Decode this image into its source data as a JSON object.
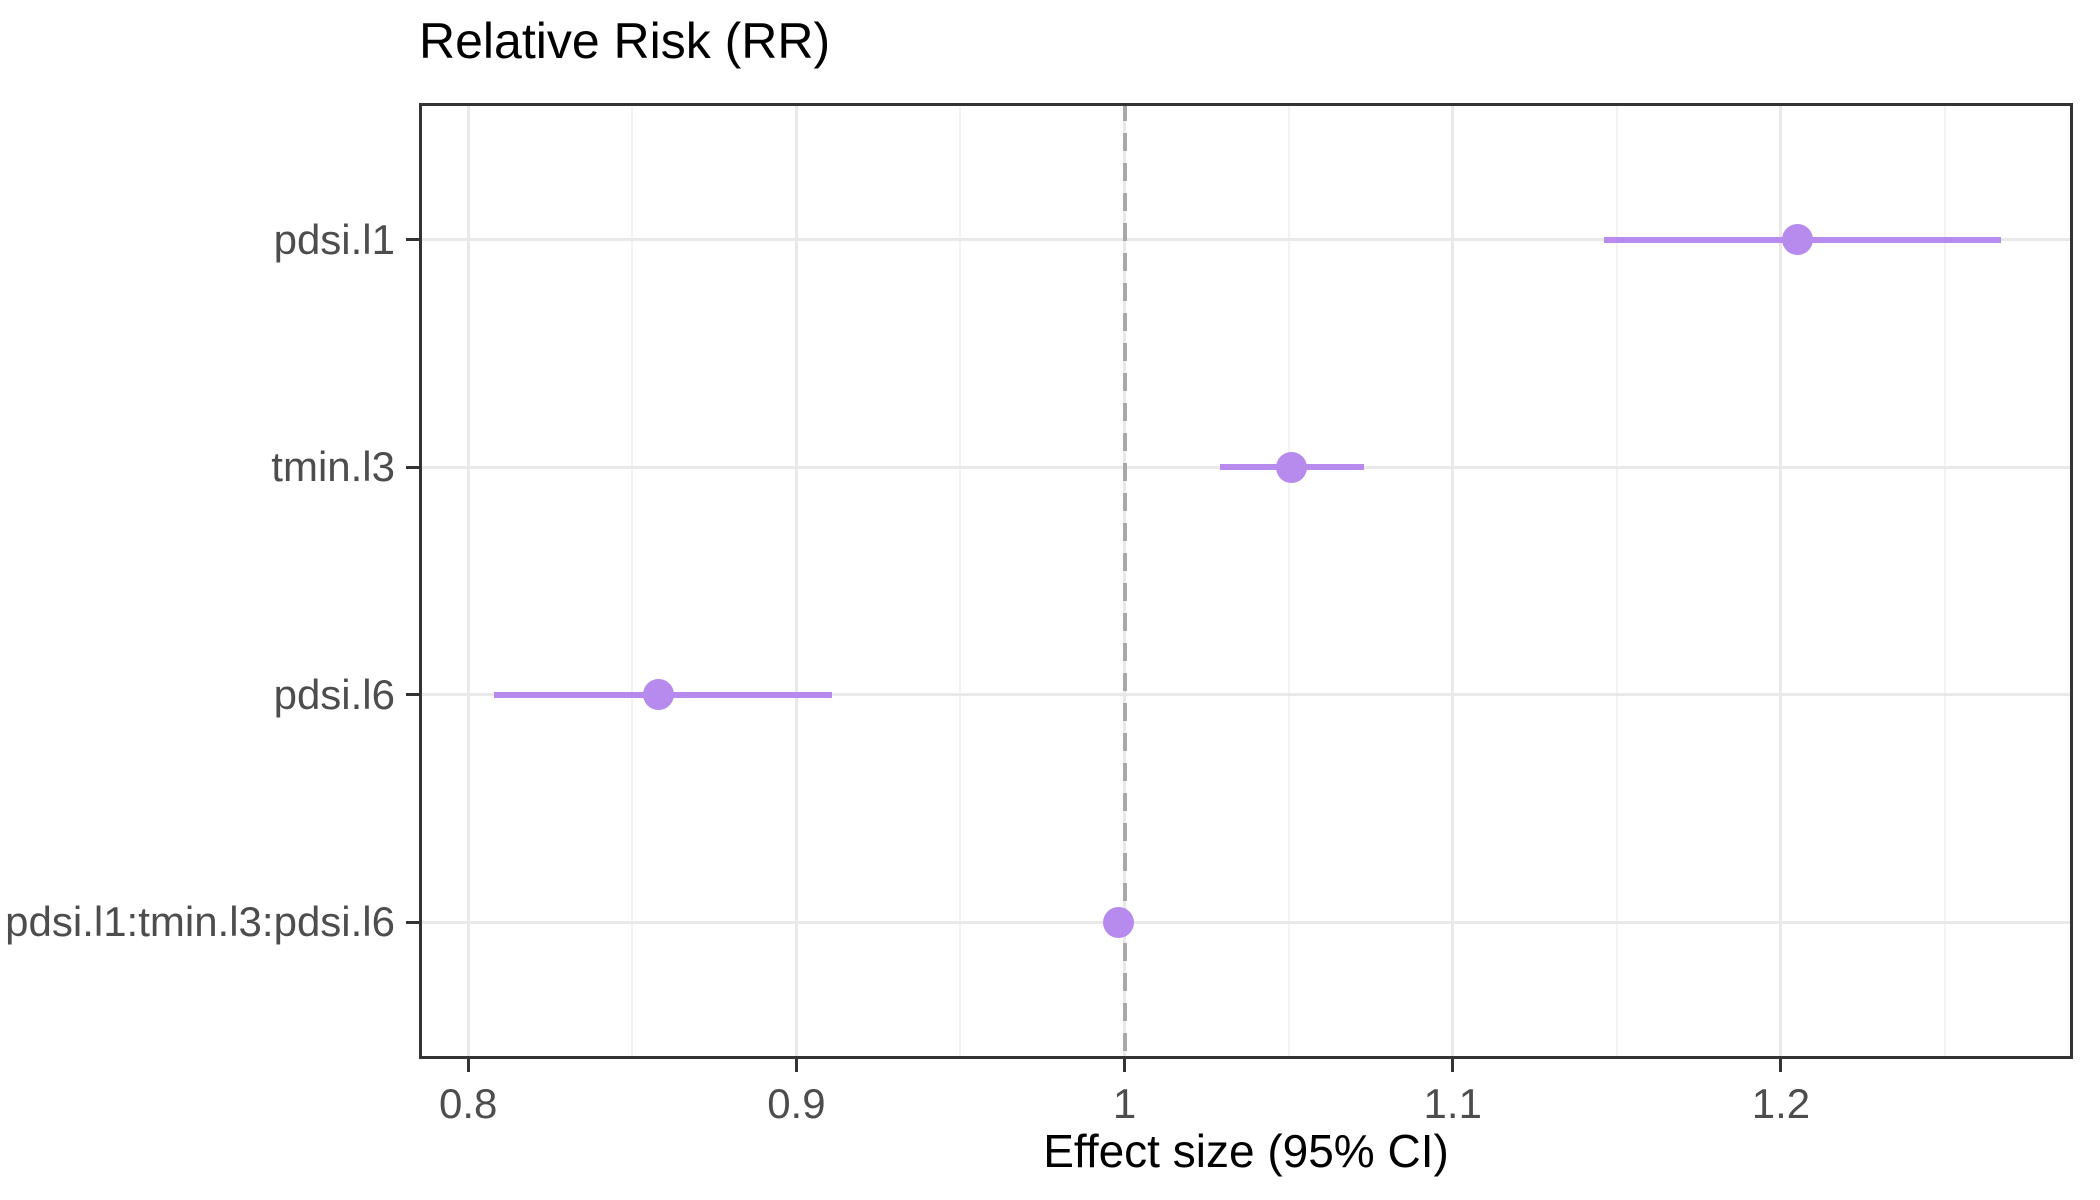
{
  "title": "Relative Risk (RR)",
  "chart_data": {
    "type": "scatter",
    "subtype": "forest-plot-dot-interval",
    "title": "Relative Risk (RR)",
    "xlabel": "Effect size (95% CI)",
    "ylabel": "",
    "categories": [
      "pdsi.l1",
      "tmin.l3",
      "pdsi.l6",
      "pdsi.l1:tmin.l3:pdsi.l6"
    ],
    "points": [
      {
        "label": "pdsi.l1",
        "estimate": 1.205,
        "ci_low": 1.146,
        "ci_high": 1.267
      },
      {
        "label": "tmin.l3",
        "estimate": 1.051,
        "ci_low": 1.029,
        "ci_high": 1.073
      },
      {
        "label": "pdsi.l6",
        "estimate": 0.858,
        "ci_low": 0.808,
        "ci_high": 0.911
      },
      {
        "label": "pdsi.l1:tmin.l3:pdsi.l6",
        "estimate": 0.998,
        "ci_low": 0.994,
        "ci_high": 1.002
      }
    ],
    "x_ticks": [
      0.8,
      0.9,
      1,
      1.1,
      1.2
    ],
    "x_tick_labels": [
      "0.8",
      "0.9",
      "1",
      "1.1",
      "1.2"
    ],
    "x_minor_ticks": [
      0.85,
      0.95,
      1.05,
      1.15,
      1.25
    ],
    "xlim": [
      0.785,
      1.289
    ],
    "reference_line": 1,
    "grid": true,
    "legend_position": "none"
  },
  "colors": {
    "point": "#b78bed",
    "ci_line": "#b78bed",
    "reference_line": "#a8a8a8",
    "grid_major": "#e9e9e9",
    "grid_minor": "#f3f3f3",
    "axis_text": "#4d4d4d",
    "title_text": "#000000",
    "panel_border": "#333333"
  }
}
